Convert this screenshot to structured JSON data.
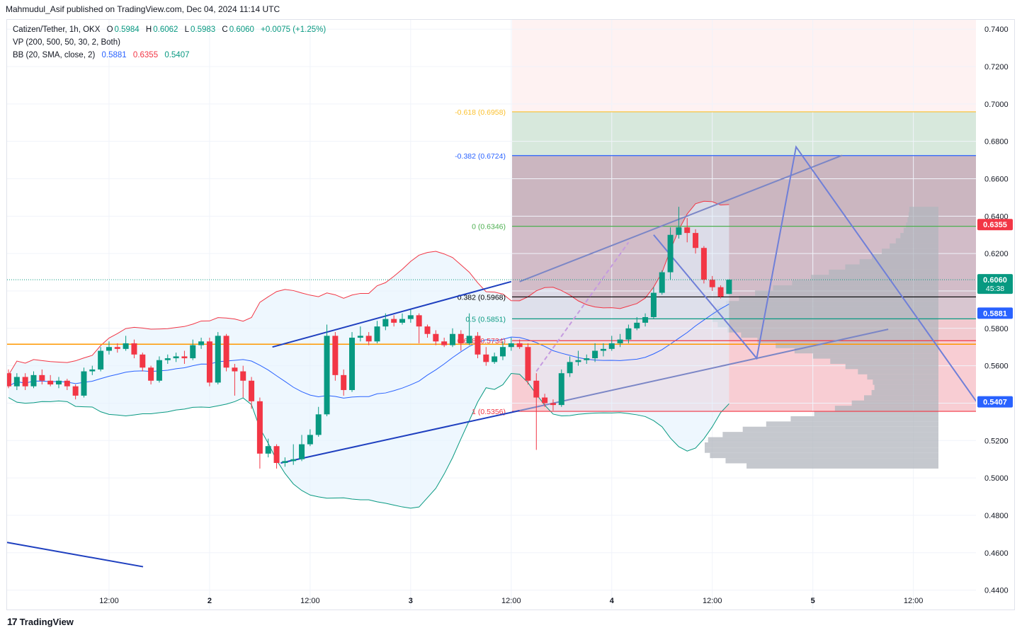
{
  "header": {
    "published": "Mahmudul_Asif published on TradingView.com, Dec 04, 2024 11:14 UTC"
  },
  "legend": {
    "symbol": "Catizen/Tether, 1h, OKX",
    "o_label": "O",
    "o": "0.5984",
    "h_label": "H",
    "h": "0.6062",
    "l_label": "L",
    "l": "0.5983",
    "c_label": "C",
    "c": "0.6060",
    "change": "+0.0075 (+1.25%)",
    "vp": "VP (200, 500, 50, 30, 2, Both)",
    "bb": "BB (20, SMA, close, 2)",
    "bb_mid": "0.5881",
    "bb_up": "0.6355",
    "bb_low": "0.5407"
  },
  "brand": {
    "logo": "17",
    "name": "TradingView"
  },
  "colors": {
    "up": "#089981",
    "down": "#f23645",
    "bb_band": "#2962ff",
    "fill": "#e3f2fd"
  },
  "chart_data": {
    "type": "candlestick",
    "y_axis": {
      "min": 0.43,
      "max": 0.745,
      "ticks": [
        "0.7400",
        "0.7200",
        "0.7000",
        "0.6800",
        "0.6600",
        "0.6400",
        "0.6200",
        "0.6000",
        "0.5800",
        "0.5600",
        "0.5400",
        "0.5200",
        "0.5000",
        "0.4800",
        "0.4600",
        "0.4400"
      ]
    },
    "x_axis": {
      "ticks": [
        {
          "label": "12:00",
          "i": 12
        },
        {
          "label": "2",
          "i": 24
        },
        {
          "label": "12:00",
          "i": 36
        },
        {
          "label": "3",
          "i": 48
        },
        {
          "label": "12:00",
          "i": 60
        },
        {
          "label": "4",
          "i": 72
        },
        {
          "label": "12:00",
          "i": 84
        },
        {
          "label": "5",
          "i": 96
        },
        {
          "label": "12:00",
          "i": 108
        }
      ]
    },
    "price_labels": [
      {
        "value": 0.6355,
        "text": "0.6355",
        "color": "#f23645"
      },
      {
        "value": 0.606,
        "text": "0.6060",
        "sub": "45:38",
        "color": "#089981"
      },
      {
        "value": 0.5881,
        "text": "0.5881",
        "color": "#2962ff"
      },
      {
        "value": 0.5407,
        "text": "0.5407",
        "color": "#2962ff"
      }
    ],
    "fib_levels": [
      {
        "ratio": "-0.618",
        "label": "-0.618 (0.6958)",
        "value": 0.6958,
        "color": "#fbc02d"
      },
      {
        "ratio": "-0.382",
        "label": "-0.382 (0.6724)",
        "value": 0.6724,
        "color": "#2962ff"
      },
      {
        "ratio": "0",
        "label": "0 (0.6346)",
        "value": 0.6346,
        "color": "#4caf50"
      },
      {
        "ratio": "0.382",
        "label": "0.382 (0.5968)",
        "value": 0.5968,
        "color": "#000000"
      },
      {
        "ratio": "0.5",
        "label": "0.5 (0.5851)",
        "value": 0.5851,
        "color": "#089981"
      },
      {
        "ratio": "0.618",
        "label": "0.618 (0.5734)",
        "value": 0.5734,
        "color": "#f23645"
      },
      {
        "ratio": "1",
        "label": "1 (0.5356)",
        "value": 0.5356,
        "color": "#f23645"
      }
    ],
    "horizontal_line": {
      "value": 0.5715,
      "color": "#ff9800"
    },
    "candles": [
      [
        0.556,
        0.549,
        0.558,
        0.548
      ],
      [
        0.549,
        0.554,
        0.556,
        0.547
      ],
      [
        0.554,
        0.549,
        0.556,
        0.547
      ],
      [
        0.549,
        0.555,
        0.557,
        0.548
      ],
      [
        0.555,
        0.552,
        0.558,
        0.55
      ],
      [
        0.552,
        0.55,
        0.555,
        0.549
      ],
      [
        0.55,
        0.552,
        0.554,
        0.548
      ],
      [
        0.552,
        0.549,
        0.553,
        0.547
      ],
      [
        0.549,
        0.544,
        0.55,
        0.542
      ],
      [
        0.544,
        0.557,
        0.559,
        0.543
      ],
      [
        0.557,
        0.558,
        0.56,
        0.555
      ],
      [
        0.558,
        0.568,
        0.57,
        0.557
      ],
      [
        0.568,
        0.57,
        0.573,
        0.566
      ],
      [
        0.57,
        0.569,
        0.572,
        0.567
      ],
      [
        0.569,
        0.572,
        0.576,
        0.568
      ],
      [
        0.572,
        0.566,
        0.574,
        0.564
      ],
      [
        0.566,
        0.559,
        0.567,
        0.557
      ],
      [
        0.559,
        0.552,
        0.56,
        0.55
      ],
      [
        0.552,
        0.563,
        0.565,
        0.551
      ],
      [
        0.563,
        0.564,
        0.566,
        0.561
      ],
      [
        0.564,
        0.565,
        0.567,
        0.562
      ],
      [
        0.565,
        0.564,
        0.568,
        0.561
      ],
      [
        0.564,
        0.571,
        0.574,
        0.563
      ],
      [
        0.571,
        0.573,
        0.575,
        0.569
      ],
      [
        0.573,
        0.551,
        0.575,
        0.549
      ],
      [
        0.551,
        0.576,
        0.578,
        0.55
      ],
      [
        0.576,
        0.559,
        0.577,
        0.557
      ],
      [
        0.559,
        0.557,
        0.561,
        0.544
      ],
      [
        0.557,
        0.552,
        0.56,
        0.543
      ],
      [
        0.552,
        0.541,
        0.554,
        0.537
      ],
      [
        0.541,
        0.513,
        0.543,
        0.505
      ],
      [
        0.513,
        0.517,
        0.521,
        0.511
      ],
      [
        0.517,
        0.508,
        0.518,
        0.505
      ],
      [
        0.508,
        0.509,
        0.511,
        0.506
      ],
      [
        0.509,
        0.51,
        0.518,
        0.507
      ],
      [
        0.51,
        0.518,
        0.523,
        0.509
      ],
      [
        0.518,
        0.523,
        0.526,
        0.517
      ],
      [
        0.523,
        0.534,
        0.538,
        0.522
      ],
      [
        0.534,
        0.576,
        0.582,
        0.533
      ],
      [
        0.576,
        0.555,
        0.578,
        0.552
      ],
      [
        0.555,
        0.547,
        0.558,
        0.544
      ],
      [
        0.547,
        0.575,
        0.578,
        0.546
      ],
      [
        0.575,
        0.576,
        0.581,
        0.573
      ],
      [
        0.576,
        0.573,
        0.578,
        0.571
      ],
      [
        0.573,
        0.581,
        0.584,
        0.572
      ],
      [
        0.581,
        0.585,
        0.588,
        0.579
      ],
      [
        0.585,
        0.583,
        0.587,
        0.581
      ],
      [
        0.583,
        0.585,
        0.588,
        0.582
      ],
      [
        0.585,
        0.587,
        0.59,
        0.583
      ],
      [
        0.587,
        0.581,
        0.588,
        0.572
      ],
      [
        0.581,
        0.577,
        0.582,
        0.575
      ],
      [
        0.577,
        0.573,
        0.579,
        0.571
      ],
      [
        0.573,
        0.571,
        0.575,
        0.57
      ],
      [
        0.571,
        0.577,
        0.58,
        0.57
      ],
      [
        0.577,
        0.572,
        0.579,
        0.568
      ],
      [
        0.572,
        0.576,
        0.588,
        0.571
      ],
      [
        0.576,
        0.566,
        0.578,
        0.564
      ],
      [
        0.566,
        0.562,
        0.57,
        0.56
      ],
      [
        0.562,
        0.565,
        0.567,
        0.561
      ],
      [
        0.565,
        0.57,
        0.573,
        0.563
      ],
      [
        0.57,
        0.572,
        0.575,
        0.568
      ],
      [
        0.572,
        0.57,
        0.574,
        0.569
      ],
      [
        0.57,
        0.552,
        0.572,
        0.55
      ],
      [
        0.552,
        0.543,
        0.556,
        0.515
      ],
      [
        0.543,
        0.54,
        0.545,
        0.538
      ],
      [
        0.54,
        0.539,
        0.542,
        0.536
      ],
      [
        0.539,
        0.556,
        0.558,
        0.538
      ],
      [
        0.556,
        0.562,
        0.565,
        0.554
      ],
      [
        0.562,
        0.563,
        0.568,
        0.56
      ],
      [
        0.563,
        0.564,
        0.566,
        0.561
      ],
      [
        0.564,
        0.568,
        0.572,
        0.562
      ],
      [
        0.568,
        0.569,
        0.572,
        0.565
      ],
      [
        0.569,
        0.572,
        0.576,
        0.568
      ],
      [
        0.572,
        0.574,
        0.577,
        0.57
      ],
      [
        0.574,
        0.58,
        0.582,
        0.572
      ],
      [
        0.58,
        0.583,
        0.586,
        0.579
      ],
      [
        0.583,
        0.586,
        0.588,
        0.581
      ],
      [
        0.586,
        0.599,
        0.602,
        0.585
      ],
      [
        0.599,
        0.61,
        0.611,
        0.598
      ],
      [
        0.61,
        0.63,
        0.634,
        0.606
      ],
      [
        0.63,
        0.634,
        0.645,
        0.628
      ],
      [
        0.634,
        0.631,
        0.639,
        0.626
      ],
      [
        0.631,
        0.623,
        0.633,
        0.62
      ],
      [
        0.623,
        0.606,
        0.624,
        0.604
      ],
      [
        0.606,
        0.602,
        0.608,
        0.6
      ],
      [
        0.602,
        0.597,
        0.603,
        0.596
      ],
      [
        0.5984,
        0.606,
        0.6062,
        0.5983
      ]
    ]
  }
}
